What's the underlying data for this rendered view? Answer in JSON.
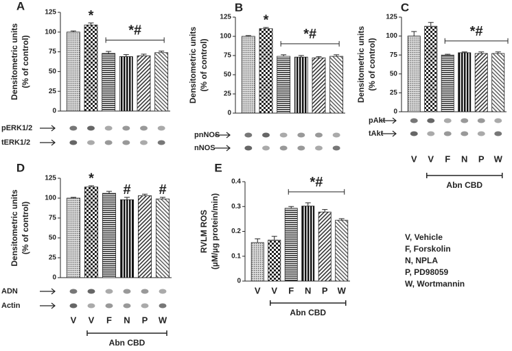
{
  "chart_data": [
    {
      "type": "bar",
      "label": "A",
      "ylabel": [
        "Densitometric units",
        "(% of control)"
      ],
      "values": [
        100,
        109,
        73,
        69,
        70,
        74
      ],
      "errors": [
        1.5,
        2.5,
        2.5,
        2.5,
        2,
        2
      ],
      "ylim": [
        0,
        125
      ],
      "yticks": [
        0,
        25,
        50,
        75,
        100,
        125
      ],
      "blots": [
        "pERK1/2",
        "tERK1/2"
      ],
      "annotations": [
        "*",
        "*#"
      ]
    },
    {
      "type": "bar",
      "label": "B",
      "ylabel": [
        "Densitometric units",
        "(% of control)"
      ],
      "values": [
        100,
        110,
        74,
        73,
        72,
        74
      ],
      "errors": [
        1,
        1.5,
        2,
        2,
        1.5,
        2
      ],
      "ylim": [
        0,
        125
      ],
      "yticks": [
        0,
        25,
        50,
        75,
        100,
        125
      ],
      "blots": [
        "pnNOS",
        "nNOS"
      ],
      "annotations": [
        "*",
        "*#"
      ]
    },
    {
      "type": "bar",
      "label": "C",
      "ylabel": [
        "Densitometric units",
        "(% of control)"
      ],
      "categories": [
        "V",
        "V",
        "F",
        "N",
        "P",
        "W"
      ],
      "group_label": "Abn CBD",
      "values": [
        100,
        113,
        75,
        78,
        77,
        77
      ],
      "errors": [
        6,
        5,
        1,
        1,
        2,
        2
      ],
      "ylim": [
        0,
        125
      ],
      "yticks": [
        0,
        25,
        50,
        75,
        100,
        125
      ],
      "blots": [
        "pAkt",
        "tAkt"
      ],
      "annotations": [
        "*#"
      ]
    },
    {
      "type": "bar",
      "label": "D",
      "ylabel": [
        "Densitometric units",
        "(% of control)"
      ],
      "categories": [
        "V",
        "V",
        "F",
        "N",
        "P",
        "W"
      ],
      "group_label": "Abn CBD",
      "values": [
        100,
        114,
        106,
        98,
        103,
        99
      ],
      "errors": [
        1,
        1.5,
        2.5,
        3,
        2,
        2
      ],
      "ylim": [
        0,
        125
      ],
      "yticks": [
        0,
        25,
        50,
        75,
        100,
        125
      ],
      "blots": [
        "ADN",
        "Actin"
      ],
      "annotations": [
        "*",
        "#",
        "#"
      ]
    },
    {
      "type": "bar",
      "label": "E",
      "ylabel": [
        "RVLM ROS",
        "(µM/µg protein/min)"
      ],
      "categories": [
        "V",
        "V",
        "F",
        "N",
        "P",
        "W"
      ],
      "group_label": "Abn CBD",
      "values": [
        0.155,
        0.165,
        0.293,
        0.302,
        0.278,
        0.245
      ],
      "errors": [
        0.015,
        0.015,
        0.007,
        0.013,
        0.01,
        0.006
      ],
      "ylim": [
        0,
        0.4
      ],
      "yticks": [
        0,
        0.1,
        0.2,
        0.3,
        0.4
      ],
      "annotations": [
        "*#"
      ]
    }
  ],
  "key": [
    "V, Vehicle",
    "F, Forskolin",
    "N, NPLA",
    "P, PD98059",
    "W, Wortmannin"
  ]
}
